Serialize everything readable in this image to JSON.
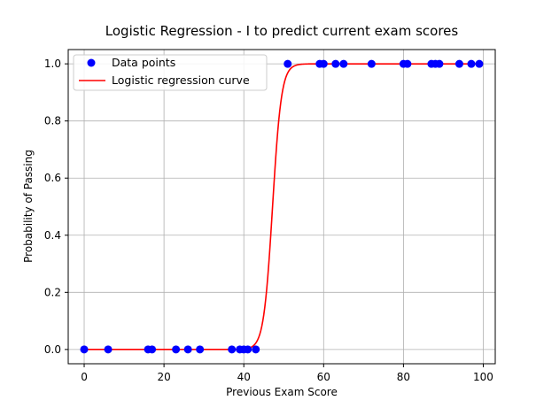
{
  "chart_data": {
    "type": "scatter",
    "title": "Logistic Regression - I to predict current exam scores",
    "xlabel": "Previous Exam Score",
    "ylabel": "Probability of Passing",
    "xlim": [
      -4,
      103
    ],
    "ylim": [
      -0.05,
      1.05
    ],
    "xticks": [
      0,
      20,
      40,
      60,
      80,
      100
    ],
    "yticks": [
      0.0,
      0.2,
      0.4,
      0.6,
      0.8,
      1.0
    ],
    "xtick_labels": [
      "0",
      "20",
      "40",
      "60",
      "80",
      "100"
    ],
    "ytick_labels": [
      "0.0",
      "0.2",
      "0.4",
      "0.6",
      "0.8",
      "1.0"
    ],
    "grid": true,
    "legend_position": "top-left",
    "series": [
      {
        "name": "Data points",
        "kind": "scatter",
        "color": "#0000ff",
        "x": [
          0,
          6,
          16,
          17,
          23,
          26,
          29,
          37,
          39,
          40,
          41,
          43,
          51,
          59,
          60,
          63,
          65,
          72,
          80,
          81,
          87,
          88,
          89,
          94,
          97,
          99
        ],
        "y": [
          0,
          0,
          0,
          0,
          0,
          0,
          0,
          0,
          0,
          0,
          0,
          0,
          1,
          1,
          1,
          1,
          1,
          1,
          1,
          1,
          1,
          1,
          1,
          1,
          1,
          1
        ]
      },
      {
        "name": "Logistic regression curve",
        "kind": "line",
        "color": "#ff0000",
        "model": {
          "midpoint": 47.2,
          "slope": 0.9
        },
        "x_range": [
          0,
          100
        ]
      }
    ]
  }
}
